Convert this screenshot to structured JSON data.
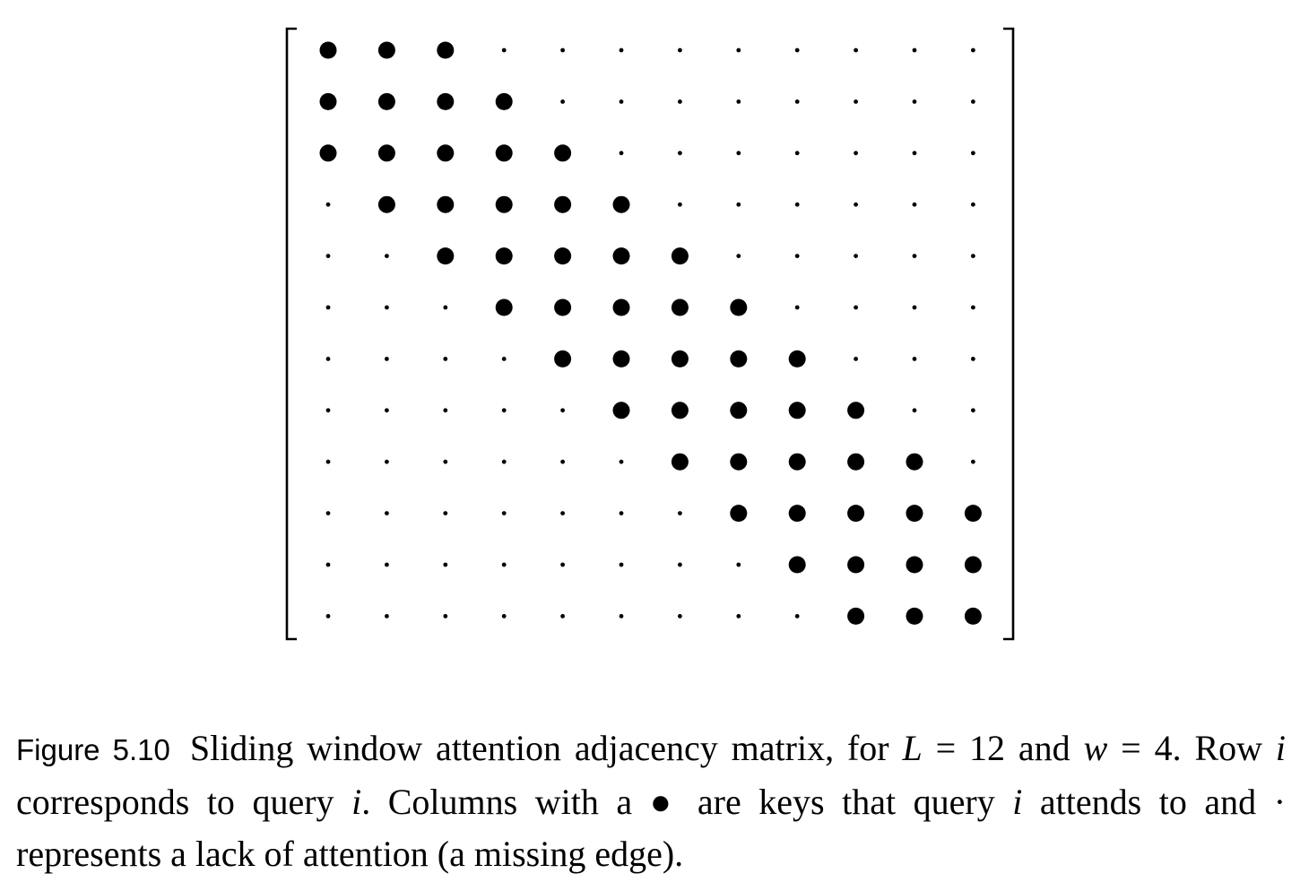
{
  "matrix": {
    "size": 12,
    "window": 4,
    "attended_symbol": "●",
    "missing_symbol": "·",
    "rows": [
      [
        1,
        1,
        1,
        0,
        0,
        0,
        0,
        0,
        0,
        0,
        0,
        0
      ],
      [
        1,
        1,
        1,
        1,
        0,
        0,
        0,
        0,
        0,
        0,
        0,
        0
      ],
      [
        1,
        1,
        1,
        1,
        1,
        0,
        0,
        0,
        0,
        0,
        0,
        0
      ],
      [
        0,
        1,
        1,
        1,
        1,
        1,
        0,
        0,
        0,
        0,
        0,
        0
      ],
      [
        0,
        0,
        1,
        1,
        1,
        1,
        1,
        0,
        0,
        0,
        0,
        0
      ],
      [
        0,
        0,
        0,
        1,
        1,
        1,
        1,
        1,
        0,
        0,
        0,
        0
      ],
      [
        0,
        0,
        0,
        0,
        1,
        1,
        1,
        1,
        1,
        0,
        0,
        0
      ],
      [
        0,
        0,
        0,
        0,
        0,
        1,
        1,
        1,
        1,
        1,
        0,
        0
      ],
      [
        0,
        0,
        0,
        0,
        0,
        0,
        1,
        1,
        1,
        1,
        1,
        0
      ],
      [
        0,
        0,
        0,
        0,
        0,
        0,
        0,
        1,
        1,
        1,
        1,
        1
      ],
      [
        0,
        0,
        0,
        0,
        0,
        0,
        0,
        0,
        1,
        1,
        1,
        1
      ],
      [
        0,
        0,
        0,
        0,
        0,
        0,
        0,
        0,
        0,
        1,
        1,
        1
      ]
    ]
  },
  "caption": {
    "label": "Figure 5.10",
    "t1": "Sliding window attention adjacency matrix, for ",
    "L": "L",
    "eq1": " = 12 and ",
    "w": "w",
    "eq2": " = 4. Row ",
    "i1": "i",
    "t2": " corresponds to query ",
    "i2": "i",
    "t3": ". Columns with a ",
    "bullet": "●",
    "t4": " are keys that query ",
    "i3": "i",
    "t5": " attends to and ",
    "dot": "·",
    "t6": " represents a lack of attention (a missing edge)."
  }
}
